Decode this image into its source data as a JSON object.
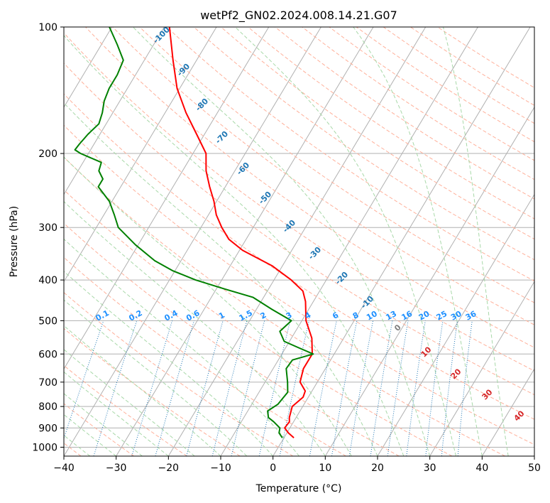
{
  "chart_data": {
    "type": "line",
    "chart_kind": "skew-t log-p diagram",
    "title": "wetPf2_GN02.2024.008.14.21.G07",
    "xlabel": "Temperature (°C)",
    "ylabel": "Pressure (hPa)",
    "xlim": [
      -40,
      50
    ],
    "ylim": [
      1050,
      100
    ],
    "y_scale": "log",
    "x_ticks": [
      -40,
      -30,
      -20,
      -10,
      0,
      10,
      20,
      30,
      40,
      50
    ],
    "x_tick_labels": [
      "−40",
      "−30",
      "−20",
      "−10",
      "0",
      "10",
      "20",
      "30",
      "40",
      "50"
    ],
    "y_ticks": [
      100,
      200,
      300,
      400,
      500,
      600,
      700,
      800,
      900,
      1000
    ],
    "y_tick_labels": [
      "100",
      "200",
      "300",
      "400",
      "500",
      "600",
      "700",
      "800",
      "900",
      "1000"
    ],
    "grid": true,
    "series": [
      {
        "color": "#ff0000",
        "points": [
          [
            950,
            1.9
          ],
          [
            925,
            0.3
          ],
          [
            900,
            -1.0
          ],
          [
            870,
            -0.8
          ],
          [
            850,
            -1.3
          ],
          [
            800,
            -2.0
          ],
          [
            760,
            -1.0
          ],
          [
            735,
            -1.3
          ],
          [
            700,
            -3.3
          ],
          [
            650,
            -4.2
          ],
          [
            600,
            -4.2
          ],
          [
            550,
            -6.1
          ],
          [
            500,
            -9.2
          ],
          [
            450,
            -11.5
          ],
          [
            425,
            -13.2
          ],
          [
            400,
            -16.7
          ],
          [
            370,
            -22.0
          ],
          [
            340,
            -29.4
          ],
          [
            320,
            -33.3
          ],
          [
            300,
            -36.0
          ],
          [
            280,
            -38.5
          ],
          [
            260,
            -40.5
          ],
          [
            240,
            -43.0
          ],
          [
            220,
            -45.5
          ],
          [
            200,
            -47.5
          ],
          [
            180,
            -51.5
          ],
          [
            160,
            -56.0
          ],
          [
            140,
            -60.5
          ],
          [
            120,
            -64.5
          ],
          [
            100,
            -69.0
          ]
        ]
      },
      {
        "color": "#008000",
        "points": [
          [
            950,
            -0.3
          ],
          [
            925,
            -1.5
          ],
          [
            900,
            -1.9
          ],
          [
            870,
            -3.8
          ],
          [
            850,
            -5.3
          ],
          [
            820,
            -6.2
          ],
          [
            790,
            -5.0
          ],
          [
            770,
            -4.8
          ],
          [
            740,
            -4.5
          ],
          [
            700,
            -5.7
          ],
          [
            650,
            -7.5
          ],
          [
            620,
            -7.3
          ],
          [
            600,
            -4.0
          ],
          [
            580,
            -7.5
          ],
          [
            560,
            -11.0
          ],
          [
            530,
            -13.0
          ],
          [
            500,
            -12.0
          ],
          [
            470,
            -17.0
          ],
          [
            440,
            -22.0
          ],
          [
            420,
            -28.5
          ],
          [
            400,
            -35.0
          ],
          [
            380,
            -40.5
          ],
          [
            360,
            -45.0
          ],
          [
            330,
            -50.5
          ],
          [
            300,
            -55.8
          ],
          [
            280,
            -58.0
          ],
          [
            260,
            -60.5
          ],
          [
            240,
            -64.3
          ],
          [
            230,
            -64.3
          ],
          [
            220,
            -66.0
          ],
          [
            210,
            -66.5
          ],
          [
            200,
            -71.5
          ],
          [
            196,
            -73.0
          ],
          [
            190,
            -72.8
          ],
          [
            180,
            -72.3
          ],
          [
            170,
            -71.4
          ],
          [
            160,
            -72.0
          ],
          [
            150,
            -73.0
          ],
          [
            140,
            -73.5
          ],
          [
            130,
            -73.5
          ],
          [
            120,
            -74.0
          ],
          [
            110,
            -77.0
          ],
          [
            100,
            -80.5
          ]
        ]
      }
    ],
    "dry_adiabat_labels": [
      "-100",
      "-90",
      "-80",
      "-70",
      "-60",
      "-50",
      "-40",
      "-30",
      "-20",
      "-10"
    ],
    "mixing_ratio_labels": [
      "0.1",
      "0.2",
      "0.4",
      "0.6",
      "1",
      "1.5",
      "2",
      "3",
      "4",
      "6",
      "8",
      "10",
      "13",
      "16",
      "20",
      "25",
      "30",
      "36"
    ],
    "moist_adiabat_labels": [
      "0",
      "10",
      "20",
      "30",
      "40"
    ],
    "colors": {
      "temperature": "#ff0000",
      "dewpoint": "#008000",
      "isotherm": "#b0b0b0",
      "dry_adiabat": "#ffb09a",
      "moist_adiabat": "#a8d8a8",
      "mixing_ratio": "#1f77b4",
      "dry_adiabat_label": "#1f77b4",
      "mixing_ratio_label": "#1e90ff",
      "moist_adiabat_label": "#d62728",
      "moist_zero_label": "#808080"
    }
  }
}
